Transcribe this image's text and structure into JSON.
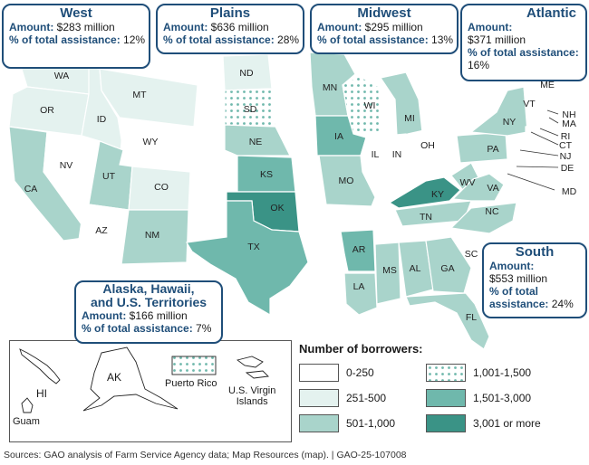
{
  "regions": {
    "west": {
      "title": "West",
      "amount_label": "Amount:",
      "amount": "$283 million",
      "pct_label": "% of total assistance:",
      "pct": "12%"
    },
    "plains": {
      "title": "Plains",
      "amount_label": "Amount:",
      "amount": "$636 million",
      "pct_label": "% of total assistance:",
      "pct": "28%"
    },
    "midwest": {
      "title": "Midwest",
      "amount_label": "Amount:",
      "amount": "$295 million",
      "pct_label": "% of total assistance:",
      "pct": "13%"
    },
    "atlantic": {
      "title": "Atlantic",
      "amount_label": "Amount:",
      "amount": "$371 million",
      "pct_label": "% of total assistance:",
      "pct": "16%"
    },
    "south": {
      "title": "South",
      "amount_label": "Amount:",
      "amount": "$553 million",
      "pct_label": "% of total assistance:",
      "pct": "24%"
    },
    "territories": {
      "title_line1": "Alaska, Hawaii,",
      "title_line2": "and U.S. Territories",
      "amount_label": "Amount:",
      "amount": "$166 million",
      "pct_label": "% of total assistance:",
      "pct": "7%"
    }
  },
  "states": {
    "WA": "WA",
    "OR": "OR",
    "CA": "CA",
    "NV": "NV",
    "ID": "ID",
    "MT": "MT",
    "WY": "WY",
    "UT": "UT",
    "CO": "CO",
    "AZ": "AZ",
    "NM": "NM",
    "ND": "ND",
    "SD": "SD",
    "NE": "NE",
    "KS": "KS",
    "OK": "OK",
    "TX": "TX",
    "MN": "MN",
    "WI": "WI",
    "MI": "MI",
    "IA": "IA",
    "IL": "IL",
    "IN": "IN",
    "OH": "OH",
    "MO": "MO",
    "KY": "KY",
    "ME": "ME",
    "VT": "VT",
    "NH": "NH",
    "MA": "MA",
    "RI": "RI",
    "CT": "CT",
    "NY": "NY",
    "NJ": "NJ",
    "PA": "PA",
    "DE": "DE",
    "MD": "MD",
    "WV": "WV",
    "VA": "VA",
    "TN": "TN",
    "NC": "NC",
    "AR": "AR",
    "LA": "LA",
    "MS": "MS",
    "AL": "AL",
    "GA": "GA",
    "SC": "SC",
    "FL": "FL"
  },
  "inset": {
    "AK": "AK",
    "HI": "HI",
    "guam": "Guam",
    "puerto_rico": "Puerto Rico",
    "usvi_line1": "U.S. Virgin",
    "usvi_line2": "Islands"
  },
  "legend": {
    "title": "Number of borrowers:",
    "items": [
      {
        "label": "0-250",
        "color": "#ffffff"
      },
      {
        "label": "251-500",
        "color": "#e4f2ef"
      },
      {
        "label": "501-1,000",
        "color": "#a9d4cb"
      },
      {
        "label": "1,001-1,500",
        "color": "dots"
      },
      {
        "label": "1,501-3,000",
        "color": "#6fb8ac"
      },
      {
        "label": "3,001 or more",
        "color": "#3a9386"
      }
    ]
  },
  "source": "Sources: GAO analysis of Farm Service Agency data; Map Resources (map).  |  GAO-25-107008"
}
